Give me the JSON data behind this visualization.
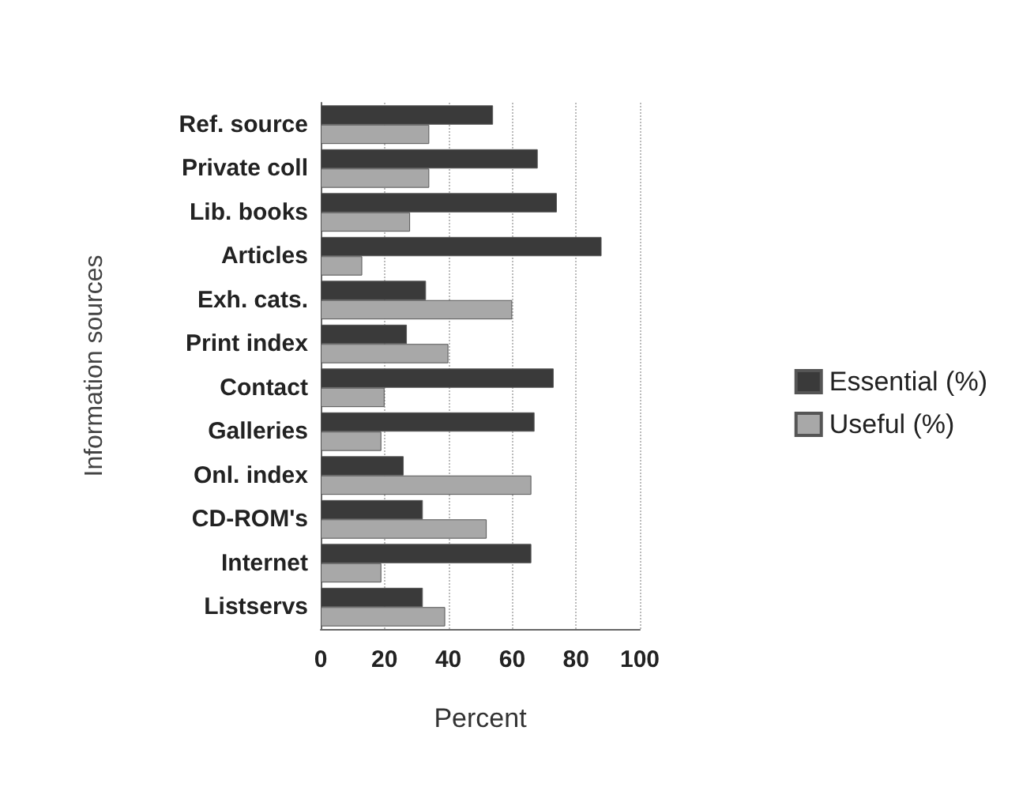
{
  "chart_data": {
    "type": "bar",
    "orientation": "horizontal",
    "xlabel": "Percent",
    "ylabel": "Information sources",
    "categories": [
      "Ref. source",
      "Private coll",
      "Lib. books",
      "Articles",
      "Exh. cats.",
      "Print index",
      "Contact",
      "Galleries",
      "Onl. index",
      "CD-ROM's",
      "Internet",
      "Listservs"
    ],
    "series": [
      {
        "name": "Essential (%)",
        "color": "#3a3a3a",
        "values": [
          54,
          68,
          74,
          88,
          33,
          27,
          73,
          67,
          26,
          32,
          66,
          32
        ]
      },
      {
        "name": "Useful (%)",
        "color": "#a8a8a8",
        "values": [
          34,
          34,
          28,
          13,
          60,
          40,
          20,
          19,
          66,
          52,
          19,
          39
        ]
      }
    ],
    "xlim": [
      0,
      100
    ],
    "xticks": [
      0,
      20,
      40,
      60,
      80,
      100
    ],
    "grid": "x",
    "legend": "right"
  }
}
